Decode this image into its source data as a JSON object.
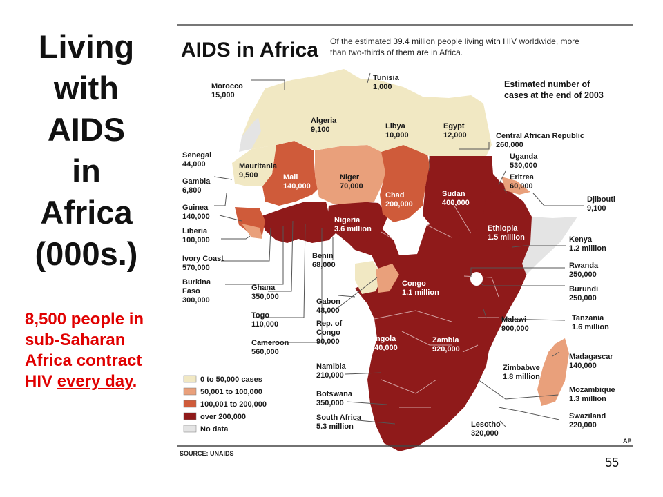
{
  "slide": {
    "title_lines": [
      "Living",
      "with",
      "AIDS",
      "in",
      "Africa",
      "(000s.)"
    ],
    "note_text": "8,500 people in sub-Saharan Africa contract HIV ",
    "note_emphasis": "every day",
    "note_end": ".",
    "page_number": "55"
  },
  "map": {
    "title": "AIDS in Africa",
    "subtitle_line1": "Of the estimated 39.4 million people living with HIV worldwide, more",
    "subtitle_line2": "than two-thirds of them are in Africa.",
    "estimate_line1": "Estimated number of",
    "estimate_line2": "cases at the end of 2003",
    "source": "SOURCE: UNAIDS",
    "credit": "AP",
    "colors": {
      "cat1": "#f1e8c3",
      "cat2": "#e9a07b",
      "cat3": "#cf5b3a",
      "cat4": "#8f1a1a",
      "nodata": "#e4e4e4"
    },
    "legend": [
      {
        "label": "0 to 50,000 cases"
      },
      {
        "label": "50,001 to 100,000"
      },
      {
        "label": "100,001 to 200,000"
      },
      {
        "label": "over 200,000"
      },
      {
        "label": "No data"
      }
    ],
    "countries": {
      "morocco": {
        "name": "Morocco",
        "value": "15,000"
      },
      "tunisia": {
        "name": "Tunisia",
        "value": "1,000"
      },
      "algeria": {
        "name": "Algeria",
        "value": "9,100"
      },
      "libya": {
        "name": "Libya",
        "value": "10,000"
      },
      "egypt": {
        "name": "Egypt",
        "value": "12,000"
      },
      "car": {
        "name": "Central African Republic",
        "value": "260,000"
      },
      "senegal": {
        "name": "Senegal",
        "value": "44,000"
      },
      "mauritania": {
        "name": "Mauritania",
        "value": "9,500"
      },
      "mali": {
        "name": "Mali",
        "value": "140,000"
      },
      "niger": {
        "name": "Niger",
        "value": "70,000"
      },
      "chad": {
        "name": "Chad",
        "value": "200,000"
      },
      "sudan": {
        "name": "Sudan",
        "value": "400,000"
      },
      "uganda": {
        "name": "Uganda",
        "value": "530,000"
      },
      "eritrea": {
        "name": "Eritrea",
        "value": "60,000"
      },
      "gambia": {
        "name": "Gambia",
        "value": "6,800"
      },
      "djibouti": {
        "name": "Djibouti",
        "value": "9,100"
      },
      "guinea": {
        "name": "Guinea",
        "value": "140,000"
      },
      "nigeria": {
        "name": "Nigeria",
        "value": "3.6 million"
      },
      "ethiopia": {
        "name": "Ethiopia",
        "value": "1.5 million"
      },
      "liberia": {
        "name": "Liberia",
        "value": "100,000"
      },
      "kenya": {
        "name": "Kenya",
        "value": "1.2 million"
      },
      "ivory_coast": {
        "name": "Ivory Coast",
        "value": "570,000"
      },
      "benin": {
        "name": "Benin",
        "value": "68,000"
      },
      "rwanda": {
        "name": "Rwanda",
        "value": "250,000"
      },
      "burkina_faso": {
        "name_line1": "Burkina",
        "name_line2": "Faso",
        "value": "300,000"
      },
      "ghana": {
        "name": "Ghana",
        "value": "350,000"
      },
      "congo": {
        "name": "Congo",
        "value": "1.1 million"
      },
      "burundi": {
        "name": "Burundi",
        "value": "250,000"
      },
      "gabon": {
        "name": "Gabon",
        "value": "48,000"
      },
      "togo": {
        "name": "Togo",
        "value": "110,000"
      },
      "rep_congo": {
        "name_line1": "Rep. of",
        "name_line2": "Congo",
        "value": "90,000"
      },
      "tanzania": {
        "name": "Tanzania",
        "value": "1.6 million"
      },
      "malawi": {
        "name": "Malawi",
        "value": "900,000"
      },
      "cameroon": {
        "name": "Cameroon",
        "value": "560,000"
      },
      "angola": {
        "name": "Angola",
        "value": "240,000"
      },
      "zambia": {
        "name": "Zambia",
        "value": "920,000"
      },
      "madagascar": {
        "name": "Madagascar",
        "value": "140,000"
      },
      "namibia": {
        "name": "Namibia",
        "value": "210,000"
      },
      "zimbabwe": {
        "name": "Zimbabwe",
        "value": "1.8 million"
      },
      "botswana": {
        "name": "Botswana",
        "value": "350,000"
      },
      "mozambique": {
        "name": "Mozambique",
        "value": "1.3 million"
      },
      "south_africa": {
        "name": "South Africa",
        "value": "5.3 million"
      },
      "swaziland": {
        "name": "Swaziland",
        "value": "220,000"
      },
      "lesotho": {
        "name": "Lesotho",
        "value": "320,000"
      }
    }
  }
}
